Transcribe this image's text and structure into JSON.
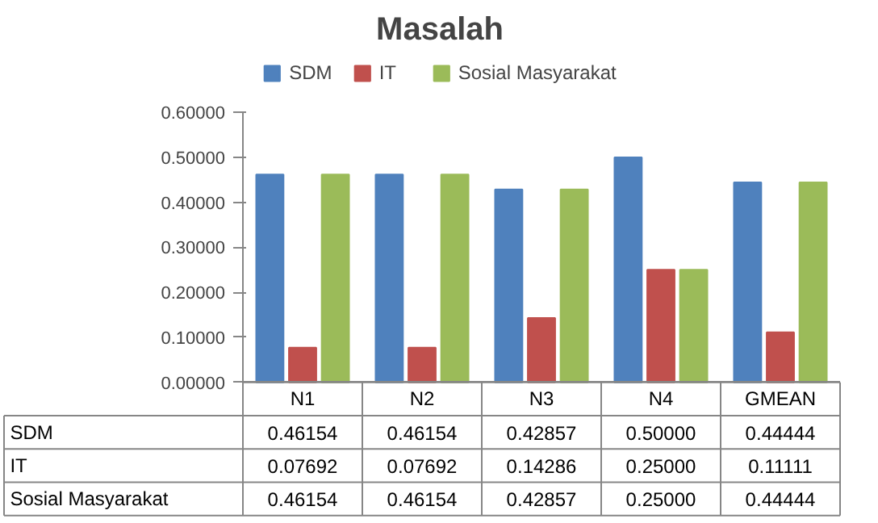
{
  "chart_data": {
    "type": "bar",
    "title": "Masalah",
    "categories": [
      "N1",
      "N2",
      "N3",
      "N4",
      "GMEAN"
    ],
    "series": [
      {
        "name": "SDM",
        "color": "#4f81bd",
        "values": [
          0.46154,
          0.46154,
          0.42857,
          0.5,
          0.44444
        ],
        "value_labels": [
          "0.46154",
          "0.46154",
          "0.42857",
          "0.50000",
          "0.44444"
        ]
      },
      {
        "name": "IT",
        "color": "#c0504d",
        "values": [
          0.07692,
          0.07692,
          0.14286,
          0.25,
          0.11111
        ],
        "value_labels": [
          "0.07692",
          "0.07692",
          "0.14286",
          "0.25000",
          "0.11111"
        ]
      },
      {
        "name": "Sosial Masyarakat",
        "color": "#9bbb59",
        "values": [
          0.46154,
          0.46154,
          0.42857,
          0.25,
          0.44444
        ],
        "value_labels": [
          "0.46154",
          "0.46154",
          "0.42857",
          "0.25000",
          "0.44444"
        ]
      }
    ],
    "ylim": [
      0,
      0.6
    ],
    "yticks": [
      {
        "value": 0,
        "label": "0.00000"
      },
      {
        "value": 0.1,
        "label": "0.10000"
      },
      {
        "value": 0.2,
        "label": "0.20000"
      },
      {
        "value": 0.3,
        "label": "0.30000"
      },
      {
        "value": 0.4,
        "label": "0.40000"
      },
      {
        "value": 0.5,
        "label": "0.50000"
      },
      {
        "value": 0.6,
        "label": "0.60000"
      }
    ],
    "grid": false,
    "legend": "top"
  }
}
